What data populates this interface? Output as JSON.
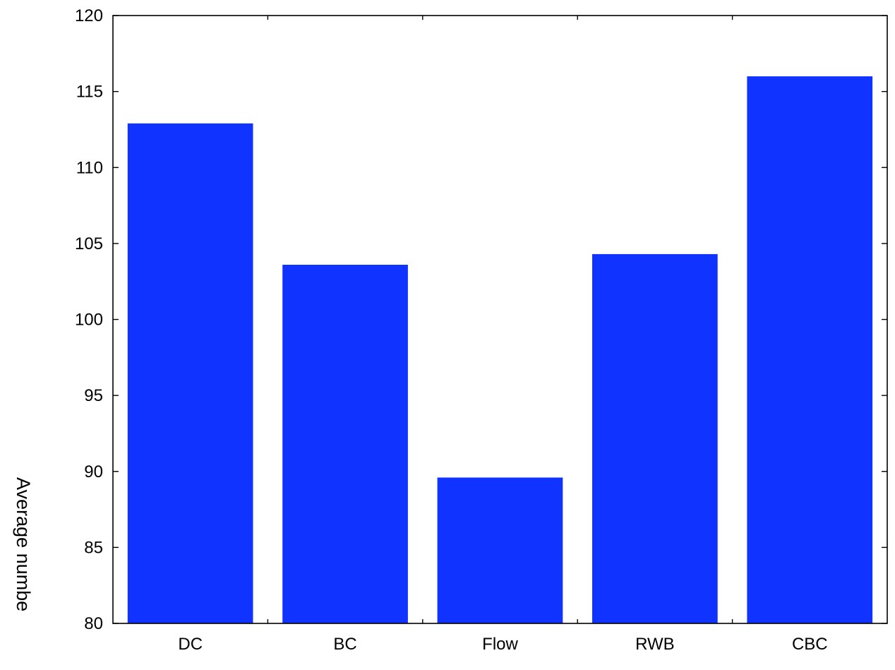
{
  "chart_data": {
    "type": "bar",
    "title": "",
    "xlabel": "",
    "ylabel": "Average numbe",
    "categories": [
      "DC",
      "BC",
      "Flow",
      "RWB",
      "CBC"
    ],
    "values": [
      112.9,
      103.6,
      89.6,
      104.3,
      116.0
    ],
    "ylim": [
      80,
      120
    ],
    "yticks": [
      80,
      85,
      90,
      95,
      100,
      105,
      110,
      115,
      120
    ],
    "grid": false,
    "legend": "none",
    "bar_color": "#1133ff"
  }
}
